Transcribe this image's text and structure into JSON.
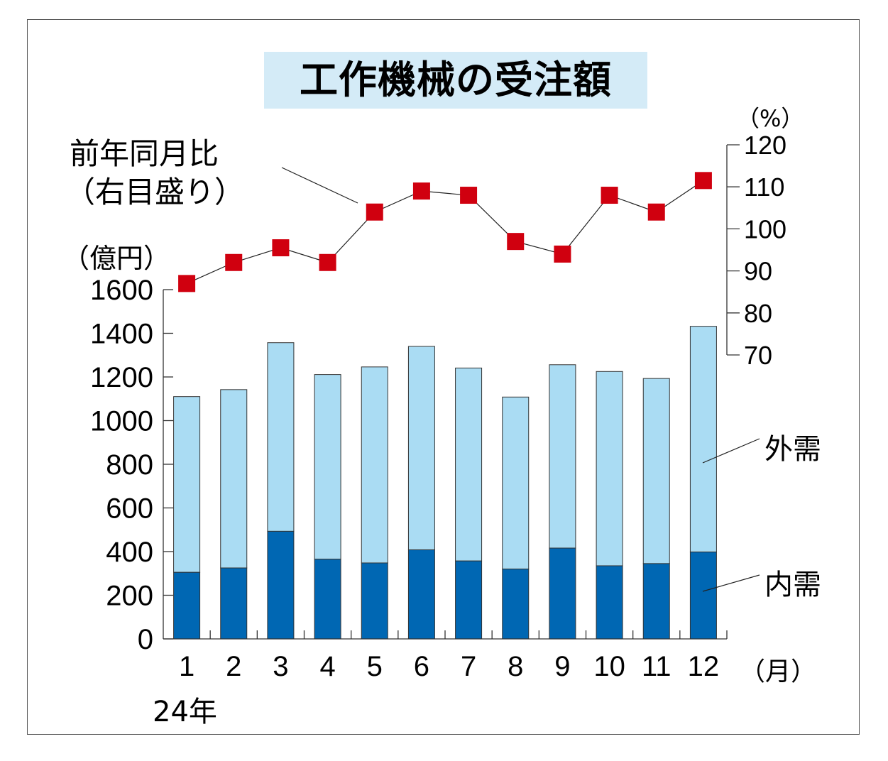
{
  "title": "工作機械の受注額",
  "yoy_label_line1": "前年同月比",
  "yoy_label_line2": "（右目盛り）",
  "left_unit": "（億円）",
  "right_unit": "（%）",
  "x_unit": "（月）",
  "year_label": "24年",
  "series_labels": {
    "foreign": "外需",
    "domestic": "内需"
  },
  "colors": {
    "domestic": "#0067b3",
    "foreign": "#aadcf3",
    "yoy_marker": "#d0000f",
    "title_bg": "#d4ebf7"
  },
  "chart_data": {
    "type": "bar",
    "title": "工作機械の受注額",
    "categories": [
      "1",
      "2",
      "3",
      "4",
      "5",
      "6",
      "7",
      "8",
      "9",
      "10",
      "11",
      "12"
    ],
    "series": [
      {
        "name": "内需",
        "values": [
          305,
          325,
          493,
          365,
          348,
          408,
          357,
          320,
          416,
          335,
          345,
          398
        ]
      },
      {
        "name": "外需",
        "values": [
          805,
          817,
          864,
          846,
          898,
          932,
          884,
          788,
          840,
          890,
          848,
          1034
        ]
      }
    ],
    "line_series": {
      "name": "前年同月比",
      "axis": "right",
      "values": [
        87,
        92,
        95.5,
        92,
        104,
        109,
        108,
        97,
        94,
        108,
        104,
        111.5
      ]
    },
    "left_axis": {
      "ylim": [
        0,
        1600
      ],
      "ticks": [
        0,
        200,
        400,
        600,
        800,
        1000,
        1200,
        1400,
        1600
      ],
      "unit": "億円"
    },
    "right_axis": {
      "ylim": [
        70,
        120
      ],
      "ticks": [
        70,
        80,
        90,
        100,
        110,
        120
      ],
      "unit": "%"
    },
    "stacked": true,
    "grid": false
  }
}
